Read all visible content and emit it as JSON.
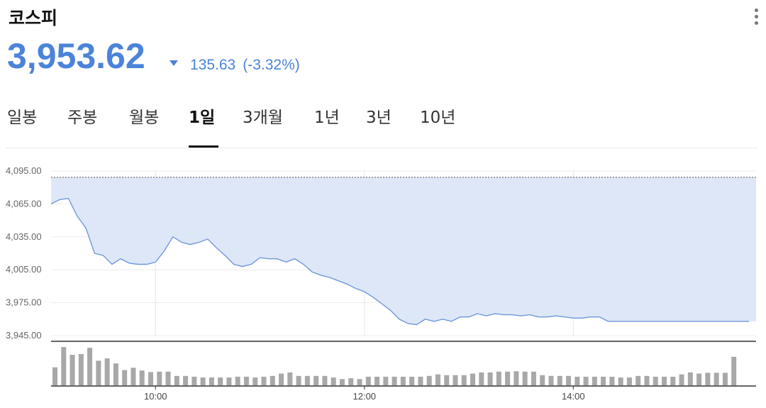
{
  "header": {
    "title": "코스피"
  },
  "quote": {
    "price": "3,953.62",
    "change": "135.63",
    "change_pct": "(-3.32%)",
    "direction": "down"
  },
  "tabs": [
    {
      "label": "일봉",
      "active": false
    },
    {
      "label": "주봉",
      "active": false
    },
    {
      "label": "월봉",
      "active": false
    },
    {
      "label": "1일",
      "active": true
    },
    {
      "label": "3개월",
      "active": false
    },
    {
      "label": "1년",
      "active": false
    },
    {
      "label": "3년",
      "active": false
    },
    {
      "label": "10년",
      "active": false
    }
  ],
  "colors": {
    "accent": "#4b83d8",
    "fill": "#dce6f8",
    "line": "#6f98d9",
    "volume": "#a8a8a8"
  },
  "chart_data": [
    {
      "type": "area",
      "ylabel": "",
      "xlabel": "",
      "ylim": [
        3945,
        4095
      ],
      "yticks": [
        "4,095.00",
        "4,065.00",
        "4,035.00",
        "4,005.00",
        "3,975.00",
        "3,945.00"
      ],
      "xticks": [
        "10:00",
        "12:00",
        "14:00"
      ],
      "reference_value": 4089.25,
      "x": [
        "09:00",
        "09:05",
        "09:10",
        "09:15",
        "09:20",
        "09:25",
        "09:30",
        "09:35",
        "09:40",
        "09:45",
        "09:50",
        "09:55",
        "10:00",
        "10:05",
        "10:10",
        "10:15",
        "10:20",
        "10:25",
        "10:30",
        "10:35",
        "10:40",
        "10:45",
        "10:50",
        "10:55",
        "11:00",
        "11:05",
        "11:10",
        "11:15",
        "11:20",
        "11:25",
        "11:30",
        "11:35",
        "11:40",
        "11:45",
        "11:50",
        "11:55",
        "12:00",
        "12:05",
        "12:10",
        "12:15",
        "12:20",
        "12:25",
        "12:30",
        "12:35",
        "12:40",
        "12:45",
        "12:50",
        "12:55",
        "13:00",
        "13:05",
        "13:10",
        "13:15",
        "13:20",
        "13:25",
        "13:30",
        "13:35",
        "13:40",
        "13:45",
        "13:50",
        "13:55",
        "14:00",
        "14:05",
        "14:10",
        "14:15",
        "14:20",
        "14:25",
        "14:30",
        "14:35",
        "14:40",
        "14:45",
        "14:50",
        "14:55",
        "15:00",
        "15:05",
        "15:10",
        "15:15",
        "15:20",
        "15:25",
        "15:30"
      ],
      "values": [
        4065,
        4069,
        4070,
        4054,
        4043,
        4020,
        4018,
        4010,
        4015,
        4011,
        4010,
        4010,
        4012,
        4022,
        4035,
        4030,
        4028,
        4030,
        4033,
        4025,
        4018,
        4010,
        4008,
        4010,
        4016,
        4015,
        4015,
        4012,
        4015,
        4010,
        4003,
        4000,
        3998,
        3995,
        3992,
        3988,
        3985,
        3980,
        3974,
        3968,
        3960,
        3956,
        3955,
        3960,
        3958,
        3960,
        3958,
        3962,
        3962,
        3965,
        3963,
        3965,
        3964,
        3964,
        3963,
        3964,
        3962,
        3962,
        3963,
        3962,
        3961,
        3961,
        3962,
        3962,
        3958,
        3958,
        3958,
        3958,
        3958,
        3958,
        3958,
        3958,
        3958,
        3958,
        3958,
        3958,
        3958,
        3958,
        3958
      ]
    },
    {
      "type": "bar",
      "title": "",
      "x": [
        "09:00",
        "09:05",
        "09:10",
        "09:15",
        "09:20",
        "09:25",
        "09:30",
        "09:35",
        "09:40",
        "09:45",
        "09:50",
        "09:55",
        "10:00",
        "10:05",
        "10:10",
        "10:15",
        "10:20",
        "10:25",
        "10:30",
        "10:35",
        "10:40",
        "10:45",
        "10:50",
        "10:55",
        "11:00",
        "11:05",
        "11:10",
        "11:15",
        "11:20",
        "11:25",
        "11:30",
        "11:35",
        "11:40",
        "11:45",
        "11:50",
        "11:55",
        "12:00",
        "12:05",
        "12:10",
        "12:15",
        "12:20",
        "12:25",
        "12:30",
        "12:35",
        "12:40",
        "12:45",
        "12:50",
        "12:55",
        "13:00",
        "13:05",
        "13:10",
        "13:15",
        "13:20",
        "13:25",
        "13:30",
        "13:35",
        "13:40",
        "13:45",
        "13:50",
        "13:55",
        "14:00",
        "14:05",
        "14:10",
        "14:15",
        "14:20",
        "14:25",
        "14:30",
        "14:35",
        "14:40",
        "14:45",
        "14:50",
        "14:55",
        "15:00",
        "15:05",
        "15:10",
        "15:15",
        "15:20",
        "15:25",
        "15:30"
      ],
      "values": [
        0.46,
        0.98,
        0.78,
        0.8,
        0.96,
        0.63,
        0.69,
        0.56,
        0.39,
        0.45,
        0.38,
        0.34,
        0.35,
        0.35,
        0.24,
        0.24,
        0.22,
        0.2,
        0.2,
        0.2,
        0.2,
        0.22,
        0.22,
        0.2,
        0.22,
        0.24,
        0.3,
        0.33,
        0.24,
        0.24,
        0.24,
        0.24,
        0.2,
        0.16,
        0.18,
        0.16,
        0.22,
        0.22,
        0.22,
        0.22,
        0.22,
        0.22,
        0.22,
        0.24,
        0.28,
        0.26,
        0.26,
        0.26,
        0.3,
        0.33,
        0.33,
        0.35,
        0.35,
        0.36,
        0.35,
        0.35,
        0.26,
        0.24,
        0.24,
        0.24,
        0.22,
        0.22,
        0.22,
        0.22,
        0.22,
        0.2,
        0.2,
        0.24,
        0.24,
        0.22,
        0.22,
        0.22,
        0.28,
        0.33,
        0.3,
        0.32,
        0.32,
        0.32,
        0.73
      ],
      "xlim": [
        "09:00",
        "15:45"
      ]
    }
  ]
}
